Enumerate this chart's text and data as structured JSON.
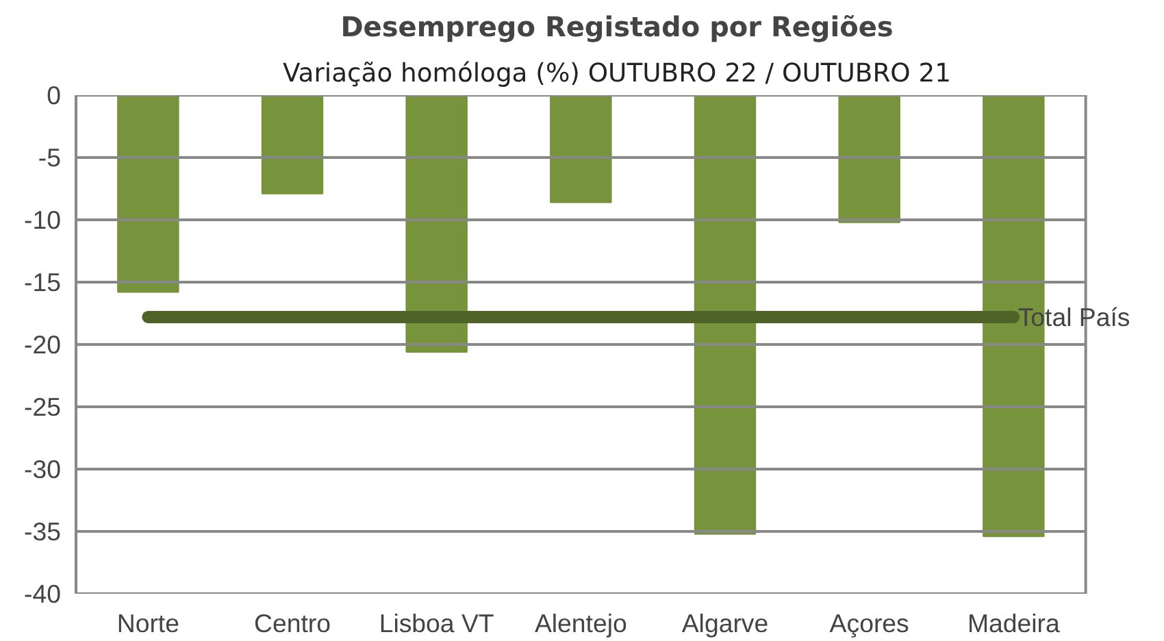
{
  "chart_data": {
    "type": "bar",
    "title": "Desemprego Registado por Regiões",
    "subtitle": "Variação homóloga (%) OUTUBRO 22 / OUTUBRO 21",
    "categories": [
      "Norte",
      "Centro",
      "Lisboa VT",
      "Alentejo",
      "Algarve",
      "Açores",
      "Madeira"
    ],
    "values": [
      -15.8,
      -7.9,
      -20.6,
      -8.6,
      -35.2,
      -10.2,
      -35.4
    ],
    "color": "#77933c",
    "ylim": [
      -40,
      0
    ],
    "yticks": [
      -40,
      -35,
      -30,
      -25,
      -20,
      -15,
      -10,
      -5,
      0
    ],
    "grid": "y",
    "ref_lines": [
      {
        "axis": "y",
        "value": -17.8,
        "label": "Total  País",
        "color": "#4f6228"
      }
    ]
  }
}
